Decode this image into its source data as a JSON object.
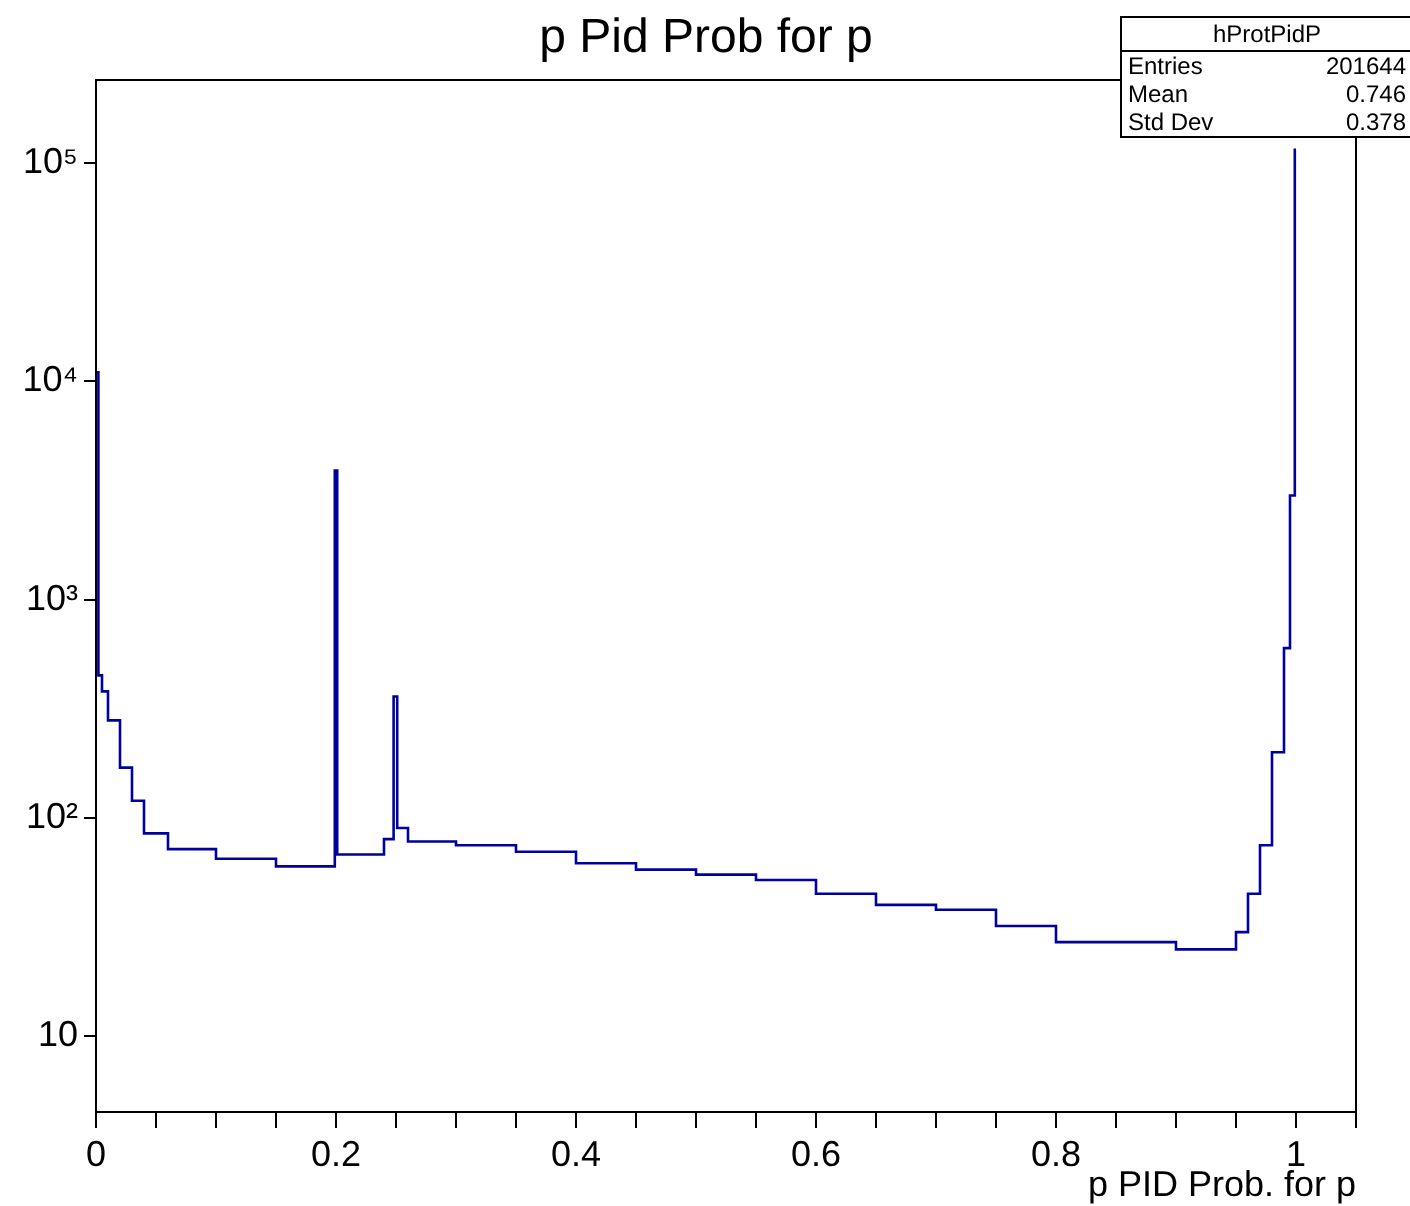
{
  "chart_data": {
    "type": "histogram",
    "title": "p Pid Prob for p",
    "xlabel": "p PID Prob. for p",
    "bins": [
      0,
      0.002,
      0.005,
      0.01,
      0.02,
      0.03,
      0.04,
      0.06,
      0.1,
      0.15,
      0.199,
      0.201,
      0.24,
      0.248,
      0.251,
      0.26,
      0.3,
      0.35,
      0.4,
      0.45,
      0.5,
      0.55,
      0.6,
      0.65,
      0.7,
      0.75,
      0.8,
      0.85,
      0.9,
      0.95,
      0.96,
      0.97,
      0.98,
      0.99,
      0.995,
      0.999,
      1.0
    ],
    "values": [
      11000,
      450,
      380,
      280,
      170,
      120,
      85,
      72,
      65,
      60,
      3900,
      68,
      80,
      360,
      90,
      78,
      75,
      70,
      62,
      58,
      55,
      52,
      45,
      40,
      38,
      32,
      27,
      27,
      25,
      30,
      45,
      75,
      200,
      600,
      3000,
      115000
    ],
    "color": "#00009c",
    "log": true,
    "grid": false,
    "legend": false,
    "xlim": [
      0,
      1.05
    ],
    "xticks": [
      0,
      {
        "value": 0.05,
        "label": null
      },
      {
        "value": 0.1,
        "label": null
      },
      {
        "value": 0.15,
        "label": null
      },
      0.2,
      {
        "value": 0.25,
        "label": null
      },
      {
        "value": 0.3,
        "label": null
      },
      {
        "value": 0.35,
        "label": null
      },
      0.4,
      {
        "value": 0.45,
        "label": null
      },
      {
        "value": 0.5,
        "label": null
      },
      {
        "value": 0.55,
        "label": null
      },
      0.6,
      {
        "value": 0.65,
        "label": null
      },
      {
        "value": 0.7,
        "label": null
      },
      {
        "value": 0.75,
        "label": null
      },
      0.8,
      {
        "value": 0.85,
        "label": null
      },
      {
        "value": 0.9,
        "label": null
      },
      {
        "value": 0.95,
        "label": null
      },
      1,
      {
        "value": 1.05,
        "label": null
      }
    ],
    "ylim": [
      4.5,
      240000
    ],
    "yticks": [
      {
        "value": 10,
        "label": "10"
      },
      {
        "value": 100,
        "label": "10²"
      },
      {
        "value": 1000,
        "label": "10³"
      },
      {
        "value": 10000,
        "label": "10⁴"
      },
      {
        "value": 100000,
        "label": "10⁵"
      }
    ],
    "annotations": [
      "hProtPidP",
      "Entries",
      "201644",
      "Mean",
      "0.746",
      "Std Dev",
      "0.378"
    ]
  }
}
